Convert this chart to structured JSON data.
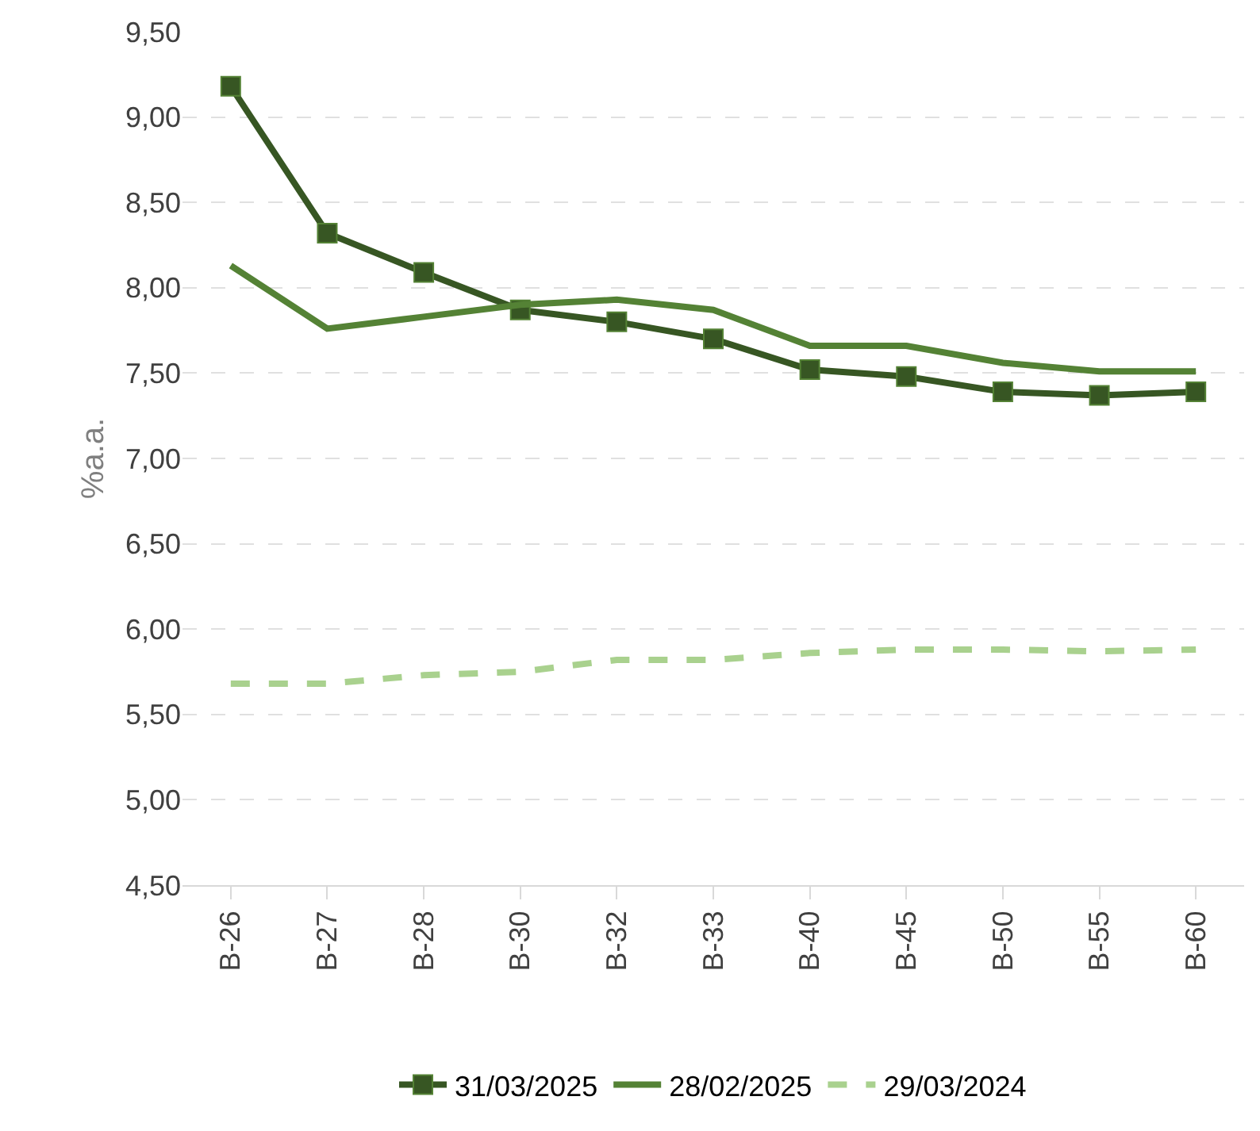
{
  "chart_data": {
    "type": "line",
    "ylabel": "%a.a.",
    "categories": [
      "B-26",
      "B-27",
      "B-28",
      "B-30",
      "B-32",
      "B-33",
      "B-40",
      "B-45",
      "B-50",
      "B-55",
      "B-60"
    ],
    "series": [
      {
        "name": "31/03/2025",
        "color": "#375623",
        "marker": "square",
        "line_style": "solid",
        "values": [
          9.18,
          8.32,
          8.09,
          7.87,
          7.8,
          7.7,
          7.52,
          7.48,
          7.39,
          7.37,
          7.39
        ]
      },
      {
        "name": "28/02/2025",
        "color": "#548235",
        "marker": "none",
        "line_style": "solid",
        "values": [
          8.13,
          7.76,
          7.83,
          7.9,
          7.93,
          7.87,
          7.66,
          7.66,
          7.56,
          7.51,
          7.51
        ]
      },
      {
        "name": "29/03/2024",
        "color": "#a9d18e",
        "marker": "none",
        "line_style": "dashed",
        "values": [
          5.68,
          5.68,
          5.73,
          5.75,
          5.82,
          5.82,
          5.86,
          5.88,
          5.88,
          5.87,
          5.88
        ]
      }
    ],
    "ylim": [
      4.5,
      9.5
    ],
    "yticks": [
      {
        "value": 4.5,
        "label": "4,50"
      },
      {
        "value": 5,
        "label": "5,00"
      },
      {
        "value": 5.5,
        "label": "5,50"
      },
      {
        "value": 6,
        "label": "6,00"
      },
      {
        "value": 6.5,
        "label": "6,50"
      },
      {
        "value": 7,
        "label": "7,00"
      },
      {
        "value": 7.5,
        "label": "7,50"
      },
      {
        "value": 8,
        "label": "8,00"
      },
      {
        "value": 8.5,
        "label": "8,50"
      },
      {
        "value": 9,
        "label": "9,00"
      },
      {
        "value": 9.5,
        "label": "9,50"
      }
    ],
    "grid": "y",
    "legend": "bottom"
  }
}
